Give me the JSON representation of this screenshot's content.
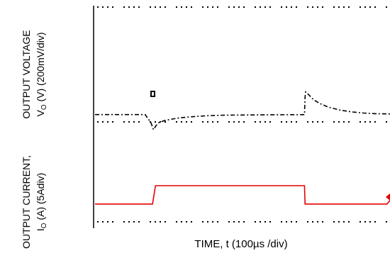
{
  "chart_data": {
    "type": "line",
    "title": "",
    "xlabel": "TIME, t (100µs /div)",
    "ylabel_top": {
      "line1": "OUTPUT VOLTAGE",
      "line2": "V",
      "line2_sub": "O",
      "line2_rest": " (V) (200mV/div)"
    },
    "ylabel_bottom": {
      "line1": "OUTPUT CURRENT,",
      "line2": "I",
      "line2_sub": "O",
      "line2_rest": " (A)  (5Adiv)"
    },
    "grid": "dotted horizontal",
    "xlim": [
      0,
      1000
    ],
    "x_unit": "µs",
    "colors": {
      "voltage": "#000000",
      "current": "#e60000",
      "axis": "#000000",
      "grid": "#000000"
    },
    "series": [
      {
        "key": "voltage",
        "ylim": [
          -500,
          1000
        ],
        "y_unit": "mV",
        "points": [
          [
            0,
            0
          ],
          [
            18,
            0
          ],
          [
            55,
            0
          ],
          [
            65,
            0
          ],
          [
            125,
            0
          ],
          [
            134,
            0
          ],
          [
            150,
            0
          ],
          [
            170,
            0
          ],
          [
            190,
            -110
          ],
          [
            198,
            -200
          ],
          [
            206,
            -150
          ],
          [
            215,
            -110
          ],
          [
            235,
            -80
          ],
          [
            260,
            -60
          ],
          [
            290,
            -42
          ],
          [
            330,
            -28
          ],
          [
            380,
            -15
          ],
          [
            440,
            -8
          ],
          [
            500,
            -6
          ],
          [
            560,
            -4
          ],
          [
            620,
            -2
          ],
          [
            700,
            -1
          ],
          [
            710,
            0
          ],
          [
            712,
            230
          ],
          [
            714,
            300
          ],
          [
            725,
            260
          ],
          [
            740,
            200
          ],
          [
            760,
            150
          ],
          [
            790,
            100
          ],
          [
            830,
            60
          ],
          [
            870,
            35
          ],
          [
            910,
            20
          ],
          [
            950,
            12
          ],
          [
            1000,
            8
          ]
        ]
      },
      {
        "key": "current",
        "ylim": [
          -17,
          10
        ],
        "y_unit": "A",
        "points": [
          [
            0,
            0
          ],
          [
            195,
            0
          ],
          [
            205,
            10
          ],
          [
            215,
            10
          ],
          [
            450,
            10
          ],
          [
            710,
            10
          ],
          [
            712,
            0
          ],
          [
            750,
            0
          ],
          [
            820,
            0
          ],
          [
            990,
            0
          ],
          [
            1000,
            2
          ]
        ]
      }
    ]
  }
}
